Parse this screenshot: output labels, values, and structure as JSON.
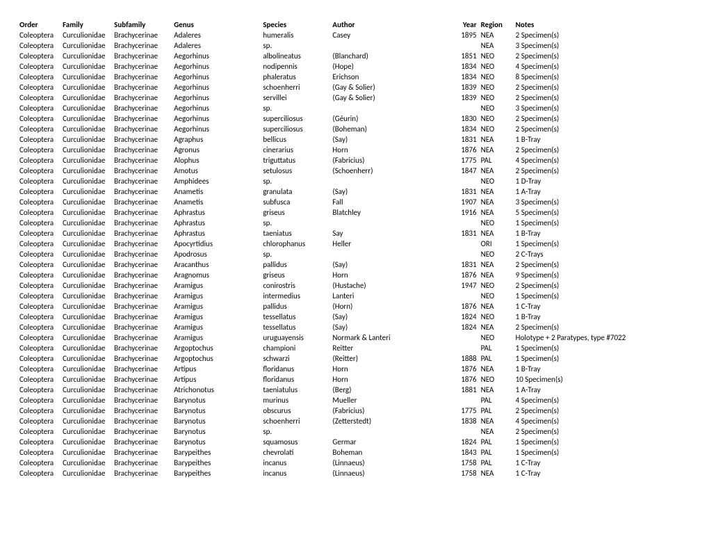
{
  "columns": [
    "Order",
    "Family",
    "Subfamily",
    "Genus",
    "Species",
    "Author",
    "Year",
    "Region",
    "Notes"
  ],
  "rows": [
    [
      "Coleoptera",
      "Curculionidae",
      "Brachycerinae",
      "Adaleres",
      "humeralis",
      "Casey",
      "1895",
      "NEA",
      "2 Specimen(s)"
    ],
    [
      "Coleoptera",
      "Curculionidae",
      "Brachycerinae",
      "Adaleres",
      "sp.",
      "",
      "",
      "NEA",
      "3 Specimen(s)"
    ],
    [
      "Coleoptera",
      "Curculionidae",
      "Brachycerinae",
      "Aegorhinus",
      "albolineatus",
      "(Blanchard)",
      "1851",
      "NEO",
      "2 Specimen(s)"
    ],
    [
      "Coleoptera",
      "Curculionidae",
      "Brachycerinae",
      "Aegorhinus",
      "nodipennis",
      "(Hope)",
      "1834",
      "NEO",
      "4 Specimen(s)"
    ],
    [
      "Coleoptera",
      "Curculionidae",
      "Brachycerinae",
      "Aegorhinus",
      "phaleratus",
      "Erichson",
      "1834",
      "NEO",
      "8 Specimen(s)"
    ],
    [
      "Coleoptera",
      "Curculionidae",
      "Brachycerinae",
      "Aegorhinus",
      "schoenherri",
      "(Gay & Solier)",
      "1839",
      "NEO",
      "2 Specimen(s)"
    ],
    [
      "Coleoptera",
      "Curculionidae",
      "Brachycerinae",
      "Aegorhinus",
      "servillei",
      "(Gay & Solier)",
      "1839",
      "NEO",
      "2 Specimen(s)"
    ],
    [
      "Coleoptera",
      "Curculionidae",
      "Brachycerinae",
      "Aegorhinus",
      "sp.",
      "",
      "",
      "NEO",
      "3 Specimen(s)"
    ],
    [
      "Coleoptera",
      "Curculionidae",
      "Brachycerinae",
      "Aegorhinus",
      "superciliosus",
      "(Géurin)",
      "1830",
      "NEO",
      "2 Specimen(s)"
    ],
    [
      "Coleoptera",
      "Curculionidae",
      "Brachycerinae",
      "Aegorhinus",
      "superciliosus",
      "(Boheman)",
      "1834",
      "NEO",
      "2 Specimen(s)"
    ],
    [
      "Coleoptera",
      "Curculionidae",
      "Brachycerinae",
      "Agraphus",
      "bellicus",
      "(Say)",
      "1831",
      "NEA",
      "1 B-Tray"
    ],
    [
      "Coleoptera",
      "Curculionidae",
      "Brachycerinae",
      "Agronus",
      "cinerarius",
      "Horn",
      "1876",
      "NEA",
      "2 Specimen(s)"
    ],
    [
      "Coleoptera",
      "Curculionidae",
      "Brachycerinae",
      "Alophus",
      "triguttatus",
      "(Fabricius)",
      "1775",
      "PAL",
      "4 Specimen(s)"
    ],
    [
      "Coleoptera",
      "Curculionidae",
      "Brachycerinae",
      "Amotus",
      "setulosus",
      "(Schoenherr)",
      "1847",
      "NEA",
      "2 Specimen(s)"
    ],
    [
      "Coleoptera",
      "Curculionidae",
      "Brachycerinae",
      "Amphidees",
      "sp.",
      "",
      "",
      "NEO",
      "1 D-Tray"
    ],
    [
      "Coleoptera",
      "Curculionidae",
      "Brachycerinae",
      "Anametis",
      "granulata",
      "(Say)",
      "1831",
      "NEA",
      "1 A-Tray"
    ],
    [
      "Coleoptera",
      "Curculionidae",
      "Brachycerinae",
      "Anametis",
      "subfusca",
      "Fall",
      "1907",
      "NEA",
      "3 Specimen(s)"
    ],
    [
      "Coleoptera",
      "Curculionidae",
      "Brachycerinae",
      "Aphrastus",
      "griseus",
      "Blatchley",
      "1916",
      "NEA",
      "5 Specimen(s)"
    ],
    [
      "Coleoptera",
      "Curculionidae",
      "Brachycerinae",
      "Aphrastus",
      "sp.",
      "",
      "",
      "NEO",
      "1 Specimen(s)"
    ],
    [
      "Coleoptera",
      "Curculionidae",
      "Brachycerinae",
      "Aphrastus",
      "taeniatus",
      "Say",
      "1831",
      "NEA",
      "1 B-Tray"
    ],
    [
      "Coleoptera",
      "Curculionidae",
      "Brachycerinae",
      "Apocyrtidius",
      "chlorophanus",
      "Heller",
      "",
      "ORI",
      "1 Specimen(s)"
    ],
    [
      "Coleoptera",
      "Curculionidae",
      "Brachycerinae",
      "Apodrosus",
      "sp.",
      "",
      "",
      "NEO",
      "2 C-Trays"
    ],
    [
      "Coleoptera",
      "Curculionidae",
      "Brachycerinae",
      "Aracanthus",
      "pallidus",
      "(Say)",
      "1831",
      "NEA",
      "2 Specimen(s)"
    ],
    [
      "Coleoptera",
      "Curculionidae",
      "Brachycerinae",
      "Aragnomus",
      "griseus",
      "Horn",
      "1876",
      "NEA",
      "9 Specimen(s)"
    ],
    [
      "Coleoptera",
      "Curculionidae",
      "Brachycerinae",
      "Aramigus",
      "conirostris",
      "(Hustache)",
      "1947",
      "NEO",
      "2 Specimen(s)"
    ],
    [
      "Coleoptera",
      "Curculionidae",
      "Brachycerinae",
      "Aramigus",
      "intermedius",
      "Lanteri",
      "",
      "NEO",
      "1 Specimen(s)"
    ],
    [
      "Coleoptera",
      "Curculionidae",
      "Brachycerinae",
      "Aramigus",
      "pallidus",
      "(Horn)",
      "1876",
      "NEA",
      "1 C-Tray"
    ],
    [
      "Coleoptera",
      "Curculionidae",
      "Brachycerinae",
      "Aramigus",
      "tessellatus",
      "(Say)",
      "1824",
      "NEO",
      "1 B-Tray"
    ],
    [
      "Coleoptera",
      "Curculionidae",
      "Brachycerinae",
      "Aramigus",
      "tessellatus",
      "(Say)",
      "1824",
      "NEA",
      "2 Specimen(s)"
    ],
    [
      "Coleoptera",
      "Curculionidae",
      "Brachycerinae",
      "Aramigus",
      "uruguayensis",
      "Normark & Lanteri",
      "",
      "NEO",
      "Holotype + 2 Paratypes, type #7022"
    ],
    [
      "Coleoptera",
      "Curculionidae",
      "Brachycerinae",
      "Argoptochus",
      "championi",
      "Reitter",
      "",
      "PAL",
      "1 Specimen(s)"
    ],
    [
      "Coleoptera",
      "Curculionidae",
      "Brachycerinae",
      "Argoptochus",
      "schwarzi",
      "(Reitter)",
      "1888",
      "PAL",
      "1 Specimen(s)"
    ],
    [
      "Coleoptera",
      "Curculionidae",
      "Brachycerinae",
      "Artipus",
      "floridanus",
      "Horn",
      "1876",
      "NEA",
      "1 B-Tray"
    ],
    [
      "Coleoptera",
      "Curculionidae",
      "Brachycerinae",
      "Artipus",
      "floridanus",
      "Horn",
      "1876",
      "NEO",
      "10 Specimen(s)"
    ],
    [
      "Coleoptera",
      "Curculionidae",
      "Brachycerinae",
      "Atrichonotus",
      "taeniatulus",
      "(Berg)",
      "1881",
      "NEA",
      "1 A-Tray"
    ],
    [
      "Coleoptera",
      "Curculionidae",
      "Brachycerinae",
      "Barynotus",
      "murinus",
      "Mueller",
      "",
      "PAL",
      "4 Specimen(s)"
    ],
    [
      "Coleoptera",
      "Curculionidae",
      "Brachycerinae",
      "Barynotus",
      "obscurus",
      "(Fabricius)",
      "1775",
      "PAL",
      "2 Specimen(s)"
    ],
    [
      "Coleoptera",
      "Curculionidae",
      "Brachycerinae",
      "Barynotus",
      "schoenherri",
      "(Zetterstedt)",
      "1838",
      "NEA",
      "4 Specimen(s)"
    ],
    [
      "Coleoptera",
      "Curculionidae",
      "Brachycerinae",
      "Barynotus",
      "sp.",
      "",
      "",
      "NEA",
      "2 Specimen(s)"
    ],
    [
      "Coleoptera",
      "Curculionidae",
      "Brachycerinae",
      "Barynotus",
      "squamosus",
      "Germar",
      "1824",
      "PAL",
      "1 Specimen(s)"
    ],
    [
      "Coleoptera",
      "Curculionidae",
      "Brachycerinae",
      "Barypeithes",
      "chevrolati",
      "Boheman",
      "1843",
      "PAL",
      "1 Specimen(s)"
    ],
    [
      "Coleoptera",
      "Curculionidae",
      "Brachycerinae",
      "Barypeithes",
      "incanus",
      "(Linnaeus)",
      "1758",
      "PAL",
      "1 C-Tray"
    ],
    [
      "Coleoptera",
      "Curculionidae",
      "Brachycerinae",
      "Barypeithes",
      "incanus",
      "(Linnaeus)",
      "1758",
      "NEA",
      "1 C-Tray"
    ]
  ]
}
